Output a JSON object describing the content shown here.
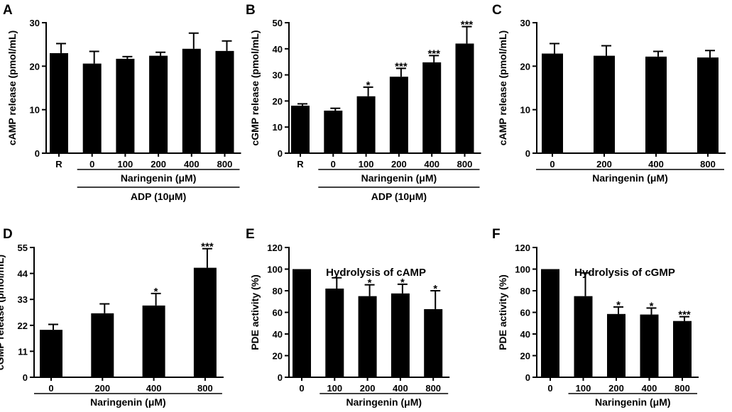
{
  "chart_data": [
    {
      "type": "bar",
      "panel": "A",
      "title": "",
      "ylabel": "cAMP release (pmol/mL)",
      "ylim": [
        0,
        30
      ],
      "yticks": [
        0,
        10,
        20,
        30
      ],
      "categories": [
        "R",
        "0",
        "100",
        "200",
        "400",
        "800"
      ],
      "values": [
        23.0,
        20.6,
        21.7,
        22.4,
        24.0,
        23.5
      ],
      "errors": [
        2.2,
        2.8,
        0.5,
        0.8,
        3.6,
        2.3
      ],
      "significance": [
        "",
        "",
        "",
        "",
        "",
        ""
      ],
      "groups": [
        {
          "label": "Naringenin (μM)",
          "from": 1,
          "to": 5
        },
        {
          "label": "ADP (10μM)",
          "from": 1,
          "to": 5
        }
      ]
    },
    {
      "type": "bar",
      "panel": "B",
      "title": "",
      "ylabel": "cGMP release (pmol/mL)",
      "ylim": [
        0,
        50
      ],
      "yticks": [
        0,
        10,
        20,
        30,
        40,
        50
      ],
      "categories": [
        "R",
        "0",
        "100",
        "200",
        "400",
        "800"
      ],
      "values": [
        18.2,
        16.3,
        21.8,
        29.3,
        34.8,
        42.0
      ],
      "errors": [
        0.7,
        0.9,
        3.5,
        3.2,
        2.6,
        6.5
      ],
      "significance": [
        "",
        "",
        "*",
        "***",
        "***",
        "***"
      ],
      "groups": [
        {
          "label": "Naringenin (μM)",
          "from": 1,
          "to": 5
        },
        {
          "label": "ADP (10μM)",
          "from": 1,
          "to": 5
        }
      ]
    },
    {
      "type": "bar",
      "panel": "C",
      "title": "",
      "ylabel": "cAMP release (pmol/mL)",
      "ylim": [
        0,
        30
      ],
      "yticks": [
        0,
        10,
        20,
        30
      ],
      "categories": [
        "0",
        "200",
        "400",
        "800"
      ],
      "values": [
        22.9,
        22.4,
        22.2,
        22.0
      ],
      "errors": [
        2.3,
        2.3,
        1.2,
        1.6
      ],
      "significance": [
        "",
        "",
        "",
        ""
      ],
      "groups": [
        {
          "label": "Naringenin (μM)",
          "from": 0,
          "to": 3
        }
      ]
    },
    {
      "type": "bar",
      "panel": "D",
      "title": "",
      "ylabel": "cGMP release (pmol/mL)",
      "ylim": [
        0,
        55
      ],
      "yticks": [
        0,
        11,
        22,
        33,
        44,
        55
      ],
      "categories": [
        "0",
        "200",
        "400",
        "800"
      ],
      "values": [
        20.1,
        27.1,
        30.4,
        46.4
      ],
      "errors": [
        2.3,
        4.0,
        5.1,
        8.1
      ],
      "significance": [
        "",
        "",
        "*",
        "***"
      ],
      "groups": [
        {
          "label": "Naringenin (μM)",
          "from": 0,
          "to": 3
        }
      ]
    },
    {
      "type": "bar",
      "panel": "E",
      "title": "Hydrolysis of cAMP",
      "ylabel": "PDE activity (%)",
      "ylim": [
        0,
        120
      ],
      "yticks": [
        0,
        20,
        40,
        60,
        80,
        100,
        120
      ],
      "categories": [
        "0",
        "100",
        "200",
        "400",
        "800"
      ],
      "values": [
        100.0,
        82.0,
        75.0,
        77.5,
        63.0
      ],
      "errors": [
        0.0,
        10.0,
        10.5,
        8.5,
        17.0
      ],
      "significance": [
        "",
        "",
        "*",
        "*",
        "*"
      ],
      "groups": [
        {
          "label": "Naringenin (μM)",
          "from": 1,
          "to": 4
        }
      ]
    },
    {
      "type": "bar",
      "panel": "F",
      "title": "Hydrolysis of cGMP",
      "ylabel": "PDE activity (%)",
      "ylim": [
        0,
        120
      ],
      "yticks": [
        0,
        20,
        40,
        60,
        80,
        100,
        120
      ],
      "categories": [
        "0",
        "100",
        "200",
        "400",
        "800"
      ],
      "values": [
        100.0,
        75.0,
        58.5,
        58.0,
        52.0
      ],
      "errors": [
        0.0,
        21.5,
        6.5,
        6.0,
        4.0
      ],
      "significance": [
        "",
        "",
        "*",
        "*",
        "***"
      ],
      "groups": [
        {
          "label": "Naringenin (μM)",
          "from": 1,
          "to": 4
        }
      ]
    }
  ]
}
